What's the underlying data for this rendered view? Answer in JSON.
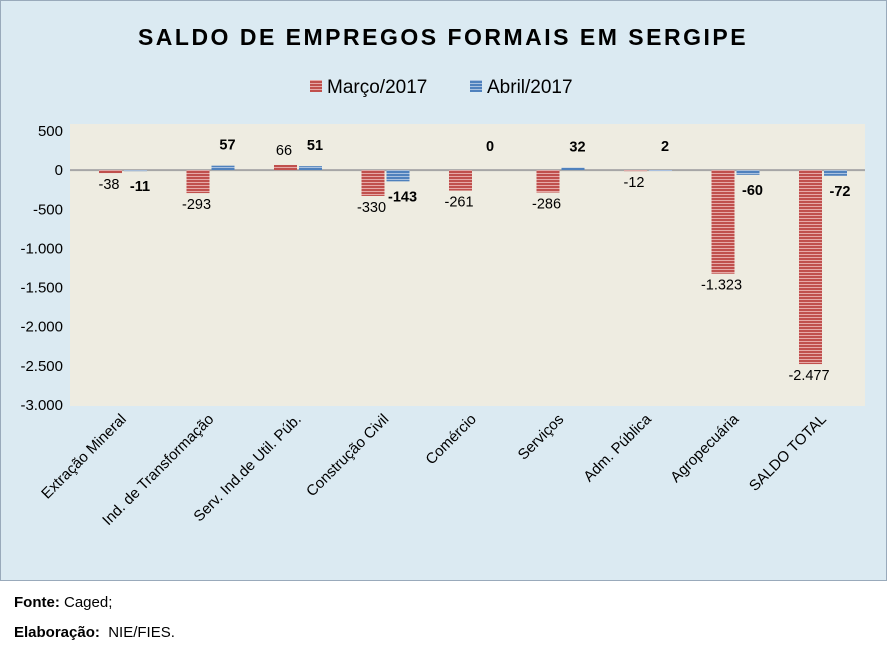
{
  "chart_data": {
    "type": "bar",
    "title": "SALDO DE EMPREGOS FORMAIS EM SERGIPE",
    "categories": [
      "Extração Mineral",
      "Ind. de Transformação",
      "Serv. Ind.de Util. Púb.",
      "Construção Civil",
      "Comércio",
      "Serviços",
      "Adm. Pública",
      "Agropecuária",
      "SALDO TOTAL"
    ],
    "series": [
      {
        "name": "Março/2017",
        "color": "#c0504d",
        "values": [
          -38,
          -293,
          66,
          -330,
          -261,
          -286,
          -12,
          -1323,
          -2477
        ],
        "labels": [
          "-38",
          "-293",
          "66",
          "-330",
          "-261",
          "-286",
          "-12",
          "-1.323",
          "-2.477"
        ]
      },
      {
        "name": "Abril/2017",
        "color": "#4f81bd",
        "values": [
          -11,
          57,
          51,
          -143,
          0,
          32,
          2,
          -60,
          -72
        ],
        "labels": [
          "-11",
          "57",
          "51",
          "-143",
          "0",
          "32",
          "2",
          "-60",
          "-72"
        ]
      }
    ],
    "yticks": [
      500,
      0,
      -500,
      -1000,
      -1500,
      -2000,
      -2500,
      -3000
    ],
    "ytick_labels": [
      "500",
      "0",
      "-500",
      "-1.000",
      "-1.500",
      "-2.000",
      "-2.500",
      "-3.000"
    ],
    "ylim": [
      -3000,
      500
    ],
    "legend": "top",
    "grid": false
  },
  "footer": {
    "source_label": "Fonte:",
    "source_value": "Caged;",
    "elab_label": "Elaboração:",
    "elab_value": "NIE/FIES."
  }
}
